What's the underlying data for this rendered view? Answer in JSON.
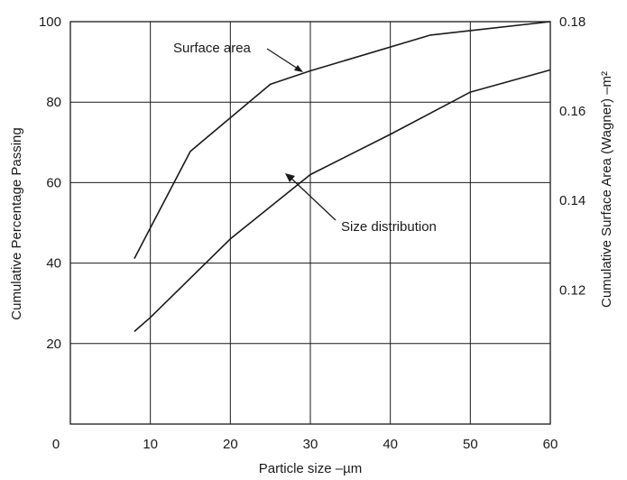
{
  "chart_data": {
    "type": "line",
    "xlabel": "Particle size –µm",
    "ylabel": "Cumulative Percentage Passing",
    "y2label": "Cumulative Surface Area (Wagner) –m²",
    "xlim": [
      0,
      60
    ],
    "ylim": [
      0,
      100
    ],
    "y2lim": [
      0.09,
      0.18
    ],
    "x_ticks": [
      "0",
      "10",
      "20",
      "30",
      "40",
      "50",
      "60"
    ],
    "y_ticks": [
      "20",
      "40",
      "60",
      "80",
      "100"
    ],
    "y2_ticks": [
      "0.12",
      "0.14",
      "0.16",
      "0.18"
    ],
    "grid": true,
    "annotations": [
      "Surface area",
      "Size distribution"
    ],
    "series": [
      {
        "name": "Surface area",
        "axis": "right",
        "x": [
          8,
          15,
          25,
          30,
          45,
          50,
          60
        ],
        "y": [
          0.127,
          0.151,
          0.166,
          0.169,
          0.177,
          0.178,
          0.18
        ]
      },
      {
        "name": "Size distribution",
        "axis": "left",
        "x": [
          8,
          10,
          20,
          30,
          40,
          50,
          60
        ],
        "y": [
          23,
          26.5,
          46,
          62,
          72,
          82.5,
          88
        ]
      }
    ]
  }
}
